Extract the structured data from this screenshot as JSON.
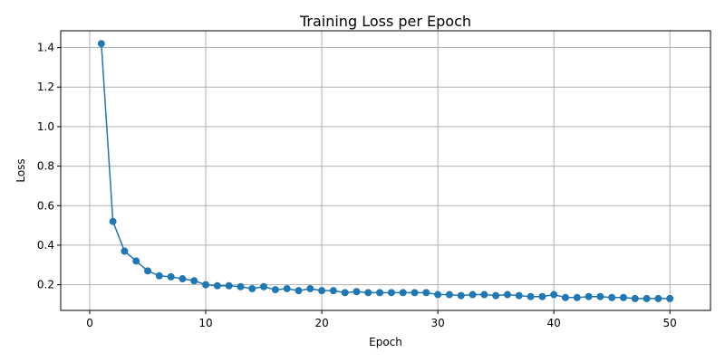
{
  "chart_data": {
    "type": "line",
    "title": "Training Loss per Epoch",
    "xlabel": "Epoch",
    "ylabel": "Loss",
    "xlim": [
      -2.5,
      53.5
    ],
    "ylim": [
      0.07,
      1.485
    ],
    "xticks": [
      0,
      10,
      20,
      30,
      40,
      50
    ],
    "yticks": [
      0.2,
      0.4,
      0.6,
      0.8,
      1.0,
      1.2,
      1.4
    ],
    "grid": true,
    "marker": "circle",
    "series_color": "#1f77b4",
    "x": [
      1,
      2,
      3,
      4,
      5,
      6,
      7,
      8,
      9,
      10,
      11,
      12,
      13,
      14,
      15,
      16,
      17,
      18,
      19,
      20,
      21,
      22,
      23,
      24,
      25,
      26,
      27,
      28,
      29,
      30,
      31,
      32,
      33,
      34,
      35,
      36,
      37,
      38,
      39,
      40,
      41,
      42,
      43,
      44,
      45,
      46,
      47,
      48,
      49,
      50
    ],
    "series": [
      {
        "values": [
          1.42,
          0.52,
          0.37,
          0.32,
          0.27,
          0.245,
          0.24,
          0.23,
          0.22,
          0.2,
          0.195,
          0.195,
          0.19,
          0.18,
          0.19,
          0.175,
          0.18,
          0.17,
          0.18,
          0.17,
          0.17,
          0.16,
          0.165,
          0.16,
          0.16,
          0.16,
          0.16,
          0.16,
          0.16,
          0.15,
          0.15,
          0.145,
          0.15,
          0.15,
          0.145,
          0.15,
          0.145,
          0.14,
          0.14,
          0.15,
          0.135,
          0.135,
          0.14,
          0.14,
          0.135,
          0.135,
          0.13,
          0.13,
          0.13,
          0.13
        ]
      }
    ]
  }
}
